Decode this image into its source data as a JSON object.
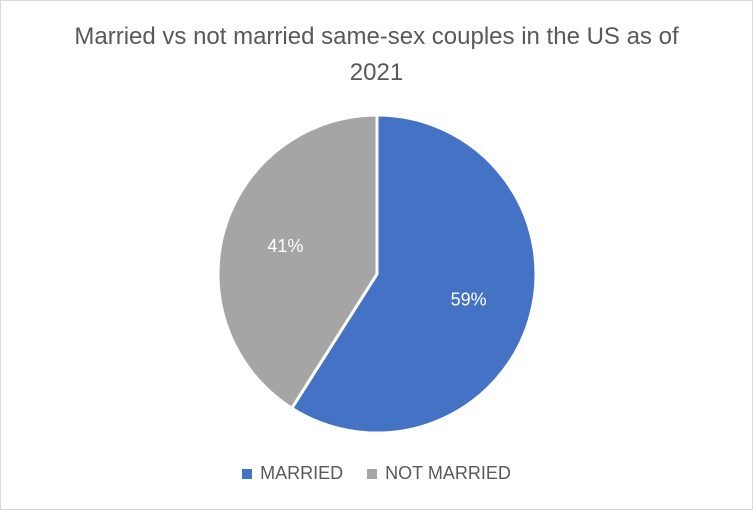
{
  "chart_data": {
    "type": "pie",
    "title": "Married vs not married same-sex couples in the US as of 2021",
    "categories": [
      "MARRIED",
      "NOT MARRIED"
    ],
    "values": [
      59,
      41
    ],
    "labels": [
      "59%",
      "41%"
    ],
    "colors": [
      "#4472c4",
      "#a5a5a5"
    ],
    "legend_position": "bottom"
  }
}
